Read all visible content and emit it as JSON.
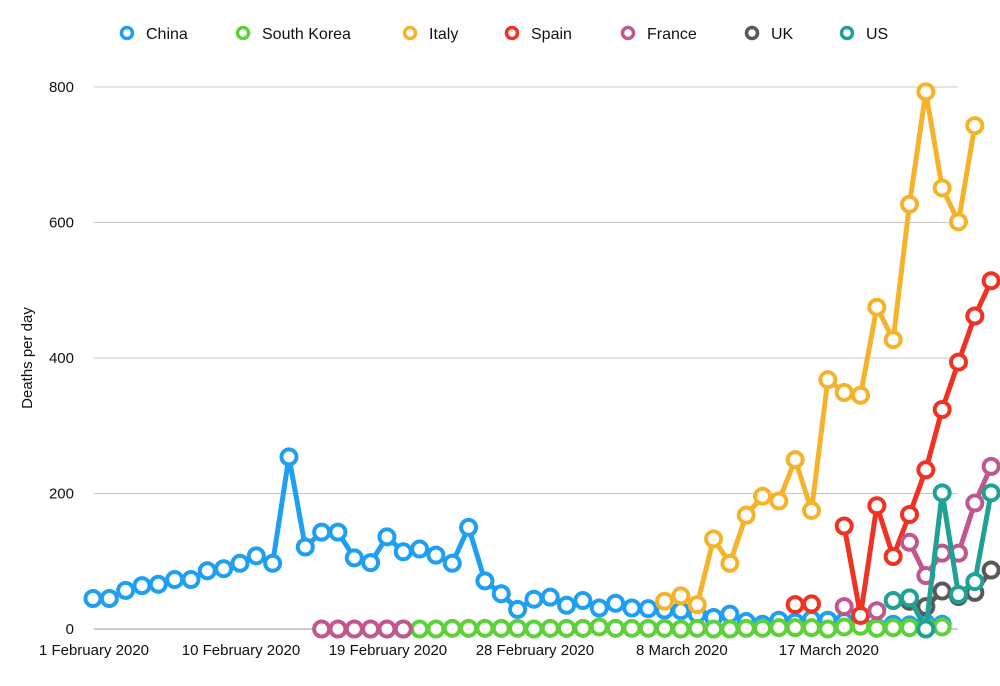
{
  "chart_data": {
    "type": "line",
    "ylabel": "Deaths per day",
    "ylim": [
      0,
      800
    ],
    "y_ticks": [
      0,
      200,
      400,
      600,
      800
    ],
    "x_tick_labels": [
      "1 February 2020",
      "10 February 2020",
      "19 February 2020",
      "28 February 2020",
      "8 March 2020",
      "17 March 2020"
    ],
    "x_start_date": "2020-02-01",
    "grid": true,
    "legend_position": "top",
    "series": [
      {
        "name": "China",
        "color": "#1e9ff2",
        "values": [
          45,
          45,
          57,
          64,
          66,
          73,
          73,
          86,
          89,
          97,
          108,
          97,
          254,
          121,
          143,
          143,
          105,
          98,
          136,
          114,
          118,
          109,
          97,
          150,
          71,
          52,
          29,
          44,
          47,
          35,
          42,
          31,
          38,
          31,
          30,
          28,
          27,
          22,
          17,
          22,
          11,
          7,
          13,
          10,
          14,
          13,
          11,
          8,
          3,
          7,
          6,
          9,
          7
        ]
      },
      {
        "name": "South Korea",
        "color": "#5ed13a",
        "values": [
          null,
          null,
          null,
          null,
          null,
          null,
          null,
          null,
          null,
          null,
          null,
          null,
          null,
          null,
          null,
          null,
          null,
          null,
          null,
          0,
          0,
          0,
          1,
          1,
          1,
          1,
          1,
          0,
          1,
          1,
          1,
          3,
          1,
          1,
          1,
          1,
          0,
          1,
          0,
          0,
          1,
          1,
          2,
          2,
          2,
          0,
          3,
          4,
          1,
          2,
          2,
          3,
          3
        ]
      },
      {
        "name": "Italy",
        "color": "#f5b32c",
        "values": [
          null,
          null,
          null,
          null,
          null,
          null,
          null,
          null,
          null,
          null,
          null,
          null,
          null,
          null,
          null,
          null,
          null,
          null,
          null,
          null,
          null,
          null,
          null,
          null,
          null,
          null,
          null,
          null,
          null,
          null,
          null,
          null,
          null,
          null,
          null,
          41,
          49,
          36,
          133,
          97,
          168,
          196,
          189,
          250,
          175,
          368,
          349,
          345,
          475,
          427,
          627,
          793,
          651,
          601,
          743
        ]
      },
      {
        "name": "Spain",
        "color": "#f03222",
        "values": [
          null,
          null,
          null,
          null,
          null,
          null,
          null,
          null,
          null,
          null,
          null,
          null,
          null,
          null,
          null,
          null,
          null,
          null,
          null,
          null,
          null,
          null,
          null,
          null,
          null,
          null,
          null,
          null,
          null,
          null,
          null,
          null,
          null,
          null,
          null,
          null,
          null,
          null,
          null,
          null,
          null,
          null,
          null,
          36,
          37,
          null,
          152,
          20,
          182,
          107,
          169,
          235,
          324,
          394,
          462,
          514
        ]
      },
      {
        "name": "France",
        "color": "#c0578e",
        "values": [
          null,
          null,
          null,
          null,
          null,
          null,
          null,
          null,
          null,
          null,
          null,
          null,
          null,
          null,
          0,
          0,
          0,
          0,
          0,
          0,
          null,
          null,
          null,
          null,
          null,
          null,
          null,
          null,
          null,
          null,
          null,
          null,
          null,
          null,
          null,
          null,
          null,
          null,
          null,
          null,
          null,
          null,
          null,
          null,
          null,
          null,
          33,
          null,
          27,
          null,
          128,
          79,
          112,
          112,
          186,
          240
        ]
      },
      {
        "name": "UK",
        "color": "#595959",
        "values": [
          null,
          null,
          null,
          null,
          null,
          null,
          null,
          null,
          null,
          null,
          null,
          null,
          null,
          null,
          null,
          null,
          null,
          null,
          null,
          null,
          null,
          null,
          null,
          null,
          null,
          null,
          null,
          null,
          null,
          null,
          null,
          null,
          null,
          null,
          null,
          null,
          null,
          null,
          null,
          null,
          null,
          null,
          null,
          null,
          null,
          null,
          null,
          null,
          null,
          null,
          41,
          33,
          56,
          48,
          54,
          87
        ]
      },
      {
        "name": "US",
        "color": "#1fa194",
        "values": [
          null,
          null,
          null,
          null,
          null,
          null,
          null,
          null,
          null,
          null,
          null,
          null,
          null,
          null,
          null,
          null,
          null,
          null,
          null,
          null,
          null,
          null,
          null,
          null,
          null,
          null,
          null,
          null,
          null,
          null,
          null,
          null,
          null,
          null,
          null,
          null,
          null,
          null,
          null,
          null,
          null,
          null,
          null,
          null,
          null,
          null,
          null,
          null,
          null,
          42,
          46,
          0,
          201,
          51,
          70,
          201
        ]
      }
    ]
  }
}
